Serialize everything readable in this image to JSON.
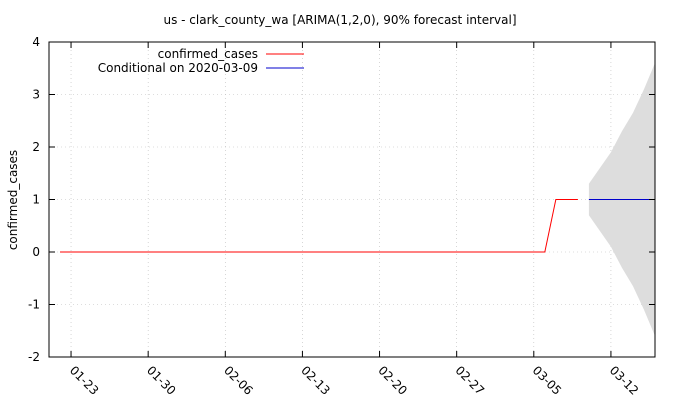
{
  "chart_data": {
    "type": "line",
    "title": "us - clark_county_wa [ARIMA(1,2,0), 90% forecast interval]",
    "xlabel": "",
    "ylabel": "confirmed_cases",
    "x_ticks": [
      "01-23",
      "01-30",
      "02-06",
      "02-13",
      "02-20",
      "02-27",
      "03-05",
      "03-12"
    ],
    "x_tick_dates": [
      "2020-01-23",
      "2020-01-30",
      "2020-02-06",
      "2020-02-13",
      "2020-02-20",
      "2020-02-27",
      "2020-03-05",
      "2020-03-12"
    ],
    "xlim": [
      "2020-01-21",
      "2020-03-16"
    ],
    "ylim": [
      -2,
      4
    ],
    "y_ticks": [
      -2,
      -1,
      0,
      1,
      2,
      3,
      4
    ],
    "grid": true,
    "legend_position": "top-left",
    "series": [
      {
        "name": "confirmed_cases",
        "color": "#ff0000",
        "x": [
          "2020-01-22",
          "2020-03-06",
          "2020-03-07",
          "2020-03-08",
          "2020-03-09"
        ],
        "y": [
          0,
          0,
          1,
          1,
          1
        ]
      },
      {
        "name": "Conditional on 2020-03-09",
        "color": "#0000cc",
        "x": [
          "2020-03-10",
          "2020-03-16"
        ],
        "y": [
          1,
          1
        ]
      }
    ],
    "forecast_interval": {
      "color": "#dddddd",
      "x": [
        "2020-03-10",
        "2020-03-11",
        "2020-03-12",
        "2020-03-13",
        "2020-03-14",
        "2020-03-15",
        "2020-03-16"
      ],
      "lower": [
        0.7,
        0.4,
        0.1,
        -0.3,
        -0.65,
        -1.1,
        -1.6
      ],
      "upper": [
        1.3,
        1.6,
        1.9,
        2.3,
        2.65,
        3.1,
        3.6
      ]
    }
  }
}
